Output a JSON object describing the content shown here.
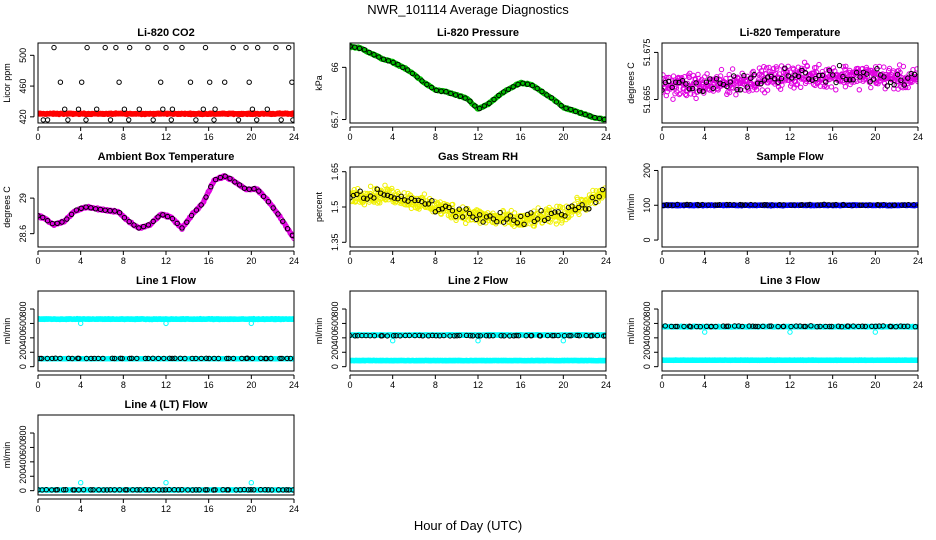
{
  "title": "NWR_101114  Average Diagnostics",
  "x_caption": "Hour of Day (UTC)",
  "chart_data": [
    {
      "type": "scatter",
      "title": "Li-820 CO2",
      "ylabel": "Licor ppm",
      "xlim": [
        0,
        24
      ],
      "x_ticks": [
        0,
        4,
        8,
        12,
        16,
        20,
        24
      ],
      "ylim": [
        412,
        516
      ],
      "y_ticks": [
        420,
        460,
        500
      ],
      "series": [
        {
          "color": "#ff0000",
          "kind": "dense",
          "y": [
            424,
            424
          ],
          "jitter": 1.2,
          "step": 0.05
        },
        {
          "color": "#000000",
          "kind": "open",
          "x": [
            1.5,
            2.1,
            2.5,
            3.8,
            4.1,
            4.6,
            5.5,
            6.3,
            7.3,
            7.6,
            8.1,
            8.6,
            9.5,
            10.3,
            11.5,
            11.7,
            12.0,
            12.6,
            13.5,
            14.3,
            15.5,
            15.7,
            16.1,
            16.6,
            17.5,
            18.3,
            19.5,
            19.8,
            20.1,
            20.6,
            21.5,
            22.3,
            23.5,
            23.8
          ],
          "y": [
            510,
            465,
            430,
            430,
            465,
            510,
            430,
            510,
            510,
            465,
            430,
            510,
            430,
            510,
            465,
            430,
            510,
            430,
            510,
            465,
            430,
            510,
            465,
            430,
            465,
            510,
            510,
            465,
            430,
            510,
            430,
            510,
            510,
            465
          ]
        },
        {
          "color": "#000000",
          "kind": "open",
          "x": [
            0.5,
            0.9,
            2.8,
            4.5,
            6.8,
            8.5,
            10.8,
            12.5,
            14.8,
            16.5,
            18.8,
            20.5,
            22.8,
            23.9
          ],
          "y": [
            416,
            416,
            416,
            416,
            416,
            416,
            416,
            416,
            416,
            416,
            416,
            416,
            416,
            416
          ]
        }
      ]
    },
    {
      "type": "scatter",
      "title": "Li-820 Pressure",
      "ylabel": "kPa",
      "xlim": [
        0,
        24
      ],
      "x_ticks": [
        0,
        4,
        8,
        12,
        16,
        20,
        24
      ],
      "ylim": [
        65.68,
        66.14
      ],
      "y_ticks": [
        65.7,
        66.0
      ],
      "series": [
        {
          "color": "#00c000",
          "kind": "curve",
          "x": [
            0,
            1,
            2,
            3,
            4,
            5,
            6,
            7,
            8,
            9,
            10,
            11,
            11.5,
            12,
            13,
            14,
            15,
            16,
            17,
            18,
            19,
            20,
            21,
            22,
            23,
            24
          ],
          "y": [
            66.12,
            66.11,
            66.08,
            66.05,
            66.03,
            66.0,
            65.96,
            65.91,
            65.87,
            65.86,
            65.84,
            65.82,
            65.79,
            65.76,
            65.79,
            65.84,
            65.88,
            65.91,
            65.9,
            65.86,
            65.82,
            65.77,
            65.75,
            65.73,
            65.71,
            65.7
          ],
          "jitter": 0.006
        }
      ]
    },
    {
      "type": "scatter",
      "title": "Li-820 Temperature",
      "ylabel": "degrees C",
      "xlim": [
        0,
        24
      ],
      "x_ticks": [
        0,
        4,
        8,
        12,
        16,
        20,
        24
      ],
      "ylim": [
        51.66,
        51.677
      ],
      "y_ticks": [
        51.665,
        51.675
      ],
      "series": [
        {
          "color": "#e000e0",
          "kind": "noise",
          "x": [
            0,
            4,
            8,
            12,
            16,
            20,
            24
          ],
          "y": [
            51.668,
            51.668,
            51.669,
            51.67,
            51.67,
            51.67,
            51.669
          ],
          "jitter": 0.0035
        },
        {
          "color": "#000000",
          "kind": "noise",
          "x": [
            0,
            4,
            8,
            12,
            16,
            20,
            24
          ],
          "y": [
            51.668,
            51.668,
            51.669,
            51.67,
            51.67,
            51.67,
            51.669
          ],
          "jitter": 0.003,
          "sparse": true
        }
      ]
    },
    {
      "type": "scatter",
      "title": "Ambient Box Temperature",
      "ylabel": "degrees C",
      "xlim": [
        0,
        24
      ],
      "x_ticks": [
        0,
        4,
        8,
        12,
        16,
        20,
        24
      ],
      "ylim": [
        28.45,
        29.35
      ],
      "y_ticks": [
        28.6,
        29.0
      ],
      "series": [
        {
          "color": "#e000e0",
          "kind": "curve",
          "x": [
            0,
            0.5,
            1.5,
            2.5,
            3.5,
            4.5,
            5.5,
            6.5,
            7.5,
            8.5,
            9.5,
            10.5,
            11.5,
            12.5,
            13.5,
            14.5,
            15.5,
            16.5,
            17.5,
            18.5,
            19.5,
            20.5,
            21.5,
            22.5,
            23.5,
            24
          ],
          "y": [
            28.8,
            28.78,
            28.7,
            28.74,
            28.86,
            28.9,
            28.88,
            28.86,
            28.85,
            28.74,
            28.66,
            28.7,
            28.82,
            28.78,
            28.66,
            28.82,
            28.95,
            29.2,
            29.25,
            29.18,
            29.1,
            29.1,
            28.98,
            28.82,
            28.64,
            28.55
          ],
          "jitter": 0.015
        }
      ]
    },
    {
      "type": "scatter",
      "title": "Gas Stream RH",
      "ylabel": "percent",
      "xlim": [
        0,
        24
      ],
      "x_ticks": [
        0,
        4,
        8,
        12,
        16,
        20,
        24
      ],
      "ylim": [
        1.33,
        1.67
      ],
      "y_ticks": [
        1.35,
        1.5,
        1.65
      ],
      "series": [
        {
          "color": "#f0f000",
          "kind": "noise",
          "x": [
            0,
            4,
            8,
            12,
            16,
            20,
            24
          ],
          "y": [
            1.55,
            1.55,
            1.5,
            1.46,
            1.44,
            1.47,
            1.56
          ],
          "jitter": 0.05
        },
        {
          "color": "#000000",
          "kind": "noise",
          "x": [
            0,
            4,
            8,
            12,
            16,
            20,
            24
          ],
          "y": [
            1.55,
            1.55,
            1.5,
            1.46,
            1.44,
            1.47,
            1.56
          ],
          "jitter": 0.04,
          "sparse": true
        }
      ]
    },
    {
      "type": "scatter",
      "title": "Sample Flow",
      "ylabel": "ml/min",
      "xlim": [
        0,
        24
      ],
      "x_ticks": [
        0,
        4,
        8,
        12,
        16,
        20,
        24
      ],
      "ylim": [
        -20,
        210
      ],
      "y_ticks": [
        0,
        100,
        200
      ],
      "series": [
        {
          "color": "#0000ff",
          "kind": "dense",
          "y": [
            100,
            100
          ],
          "jitter": 2,
          "step": 0.05
        },
        {
          "color": "#000000",
          "kind": "dense",
          "y": [
            101,
            101
          ],
          "jitter": 2,
          "step": 0.4
        }
      ]
    },
    {
      "type": "scatter",
      "title": "Line 1 Flow",
      "ylabel": "ml/min",
      "xlim": [
        0,
        24
      ],
      "x_ticks": [
        0,
        4,
        8,
        12,
        16,
        20,
        24
      ],
      "ylim": [
        -60,
        1050
      ],
      "y_ticks": [
        0,
        200,
        400,
        600,
        800
      ],
      "series": [
        {
          "color": "#00ffff",
          "kind": "dense",
          "y": [
            660,
            660
          ],
          "jitter": 8,
          "step": 0.05,
          "outliers": [
            [
              4,
              600
            ],
            [
              12,
              600
            ],
            [
              20,
              600
            ]
          ]
        },
        {
          "color": "#00ffff",
          "kind": "dense",
          "y": [
            110,
            110
          ],
          "jitter": 3,
          "step": 0.08
        },
        {
          "color": "#000000",
          "kind": "dense",
          "y": [
            115,
            115
          ],
          "jitter": 3,
          "step": 0.45
        }
      ]
    },
    {
      "type": "scatter",
      "title": "Line 2 Flow",
      "ylabel": "ml/min",
      "xlim": [
        0,
        24
      ],
      "x_ticks": [
        0,
        4,
        8,
        12,
        16,
        20,
        24
      ],
      "ylim": [
        -60,
        1050
      ],
      "y_ticks": [
        0,
        200,
        400,
        600,
        800
      ],
      "series": [
        {
          "color": "#00ffff",
          "kind": "dense",
          "y": [
            85,
            85
          ],
          "jitter": 4,
          "step": 0.05
        },
        {
          "color": "#00ffff",
          "kind": "dense",
          "y": [
            440,
            440
          ],
          "jitter": 6,
          "step": 0.06,
          "outliers": [
            [
              4,
              360
            ],
            [
              12,
              360
            ],
            [
              20,
              360
            ]
          ]
        },
        {
          "color": "#000000",
          "kind": "dense",
          "y": [
            430,
            430
          ],
          "jitter": 6,
          "step": 0.4
        }
      ]
    },
    {
      "type": "scatter",
      "title": "Line 3 Flow",
      "ylabel": "ml/min",
      "xlim": [
        0,
        24
      ],
      "x_ticks": [
        0,
        4,
        8,
        12,
        16,
        20,
        24
      ],
      "ylim": [
        -60,
        1050
      ],
      "y_ticks": [
        0,
        200,
        400,
        600,
        800
      ],
      "series": [
        {
          "color": "#00ffff",
          "kind": "dense",
          "y": [
            90,
            90
          ],
          "jitter": 4,
          "step": 0.05
        },
        {
          "color": "#00ffff",
          "kind": "dense",
          "y": [
            555,
            555
          ],
          "jitter": 8,
          "step": 0.06,
          "outliers": [
            [
              4,
              480
            ],
            [
              12,
              480
            ],
            [
              20,
              480
            ]
          ]
        },
        {
          "color": "#000000",
          "kind": "dense",
          "y": [
            560,
            560
          ],
          "jitter": 8,
          "step": 0.4
        }
      ]
    },
    {
      "type": "scatter",
      "title": "Line 4 (LT) Flow",
      "ylabel": "ml/min",
      "xlim": [
        0,
        24
      ],
      "x_ticks": [
        0,
        4,
        8,
        12,
        16,
        20,
        24
      ],
      "ylim": [
        -60,
        1050
      ],
      "y_ticks": [
        0,
        200,
        400,
        600,
        800
      ],
      "series": [
        {
          "color": "#00ffff",
          "kind": "dense",
          "y": [
            10,
            10
          ],
          "jitter": 3,
          "step": 0.05,
          "outliers": [
            [
              4,
              110
            ],
            [
              12,
              110
            ],
            [
              20,
              110
            ]
          ]
        },
        {
          "color": "#000000",
          "kind": "dense",
          "y": [
            12,
            12
          ],
          "jitter": 3,
          "step": 0.4
        }
      ]
    }
  ]
}
